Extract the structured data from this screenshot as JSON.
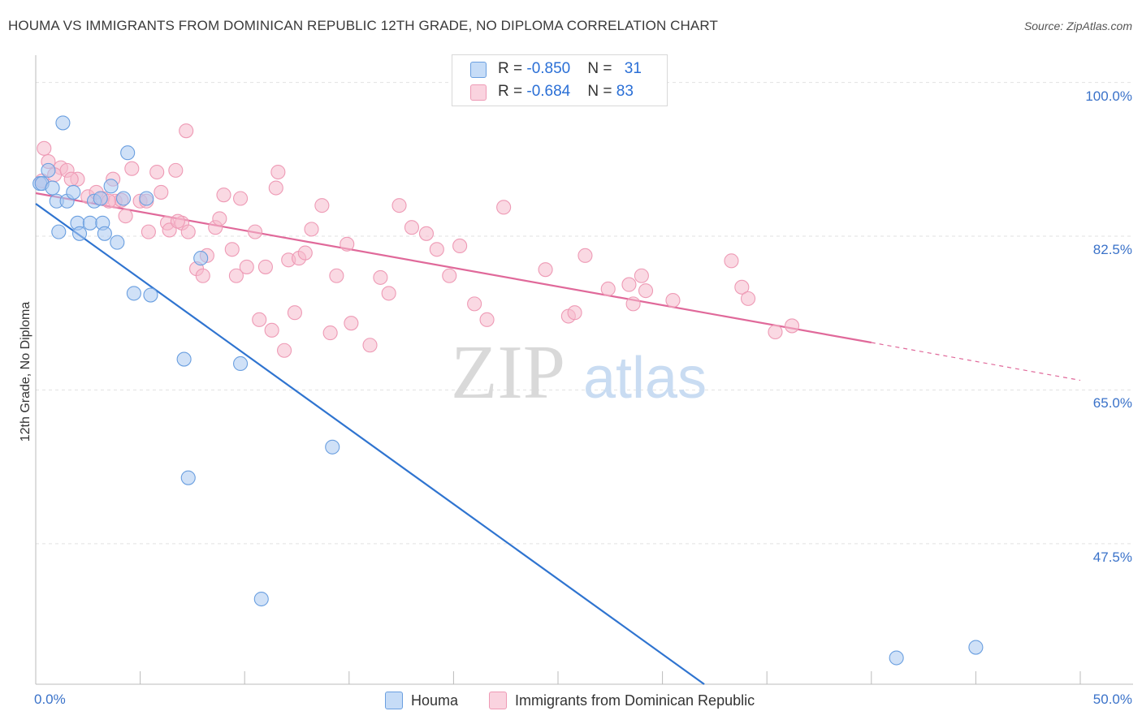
{
  "title": "HOUMA VS IMMIGRANTS FROM DOMINICAN REPUBLIC 12TH GRADE, NO DIPLOMA CORRELATION CHART",
  "source": "Source: ZipAtlas.com",
  "watermark": {
    "zip": "ZIP",
    "atlas": "atlas"
  },
  "legend": {
    "rows": [
      {
        "r_label": "R = ",
        "r_value": "-0.850",
        "n_label": "N = ",
        "n_value": "31",
        "color": "#a9c8f0"
      },
      {
        "r_label": "R = ",
        "r_value": "-0.684",
        "n_label": "N = ",
        "n_value": "83",
        "color": "#f5b9cc"
      }
    ]
  },
  "bottom_legend": [
    {
      "label": "Houma",
      "color": "#a9c8f0"
    },
    {
      "label": "Immigrants from Dominican Republic",
      "color": "#f5b9cc"
    }
  ],
  "chart_data": {
    "type": "scatter",
    "title": "HOUMA VS IMMIGRANTS FROM DOMINICAN REPUBLIC 12TH GRADE, NO DIPLOMA CORRELATION CHART",
    "xlabel": "",
    "ylabel": "12th Grade, No Diploma",
    "xlim": [
      0,
      50
    ],
    "ylim": [
      31.5,
      102
    ],
    "x_tick_labels": [
      "0.0%",
      "50.0%"
    ],
    "y_ticks": [
      47.5,
      65.0,
      82.5,
      100.0
    ],
    "y_tick_labels": [
      "47.5%",
      "65.0%",
      "82.5%",
      "100.0%"
    ],
    "grid": true,
    "legend_position": "top-center",
    "series": [
      {
        "name": "Houma",
        "color": "#6a9fe0",
        "fill": "#a9c8f0",
        "line_color": "#2f74d0",
        "trend": {
          "x": [
            0,
            32.0
          ],
          "y": [
            86.2,
            31.5
          ]
        },
        "points": [
          {
            "x": 1.3,
            "y": 95.4
          },
          {
            "x": 0.2,
            "y": 88.5
          },
          {
            "x": 0.3,
            "y": 88.5
          },
          {
            "x": 0.6,
            "y": 90.0
          },
          {
            "x": 0.8,
            "y": 88.0
          },
          {
            "x": 1.0,
            "y": 86.5
          },
          {
            "x": 1.5,
            "y": 86.5
          },
          {
            "x": 1.8,
            "y": 87.5
          },
          {
            "x": 2.0,
            "y": 84.0
          },
          {
            "x": 1.1,
            "y": 83.0
          },
          {
            "x": 2.1,
            "y": 82.8
          },
          {
            "x": 2.6,
            "y": 84.0
          },
          {
            "x": 2.8,
            "y": 86.5
          },
          {
            "x": 3.1,
            "y": 86.8
          },
          {
            "x": 3.2,
            "y": 84.0
          },
          {
            "x": 3.3,
            "y": 82.8
          },
          {
            "x": 3.6,
            "y": 88.2
          },
          {
            "x": 3.9,
            "y": 81.8
          },
          {
            "x": 4.2,
            "y": 86.8
          },
          {
            "x": 4.4,
            "y": 92.0
          },
          {
            "x": 4.7,
            "y": 76.0
          },
          {
            "x": 5.3,
            "y": 86.8
          },
          {
            "x": 5.5,
            "y": 75.8
          },
          {
            "x": 7.9,
            "y": 80.0
          },
          {
            "x": 7.1,
            "y": 68.5
          },
          {
            "x": 9.8,
            "y": 68.0
          },
          {
            "x": 7.3,
            "y": 55.0
          },
          {
            "x": 14.2,
            "y": 58.5
          },
          {
            "x": 10.8,
            "y": 41.2
          },
          {
            "x": 41.2,
            "y": 34.5
          },
          {
            "x": 45.0,
            "y": 35.7
          }
        ]
      },
      {
        "name": "Immigrants from Dominican Republic",
        "color": "#ee9ab5",
        "fill": "#f5b9cc",
        "line_color": "#e0699a",
        "trend": {
          "x": [
            0,
            40.0,
            50.0
          ],
          "y": [
            87.4,
            70.4,
            66.1
          ]
        },
        "points": [
          {
            "x": 0.4,
            "y": 92.5
          },
          {
            "x": 0.6,
            "y": 91.0
          },
          {
            "x": 1.2,
            "y": 90.3
          },
          {
            "x": 0.9,
            "y": 89.5
          },
          {
            "x": 1.5,
            "y": 90.0
          },
          {
            "x": 2.0,
            "y": 89.0
          },
          {
            "x": 0.3,
            "y": 88.8
          },
          {
            "x": 2.5,
            "y": 87.0
          },
          {
            "x": 2.9,
            "y": 87.5
          },
          {
            "x": 3.2,
            "y": 86.8
          },
          {
            "x": 3.7,
            "y": 89.0
          },
          {
            "x": 3.8,
            "y": 86.5
          },
          {
            "x": 4.1,
            "y": 86.6
          },
          {
            "x": 4.3,
            "y": 84.8
          },
          {
            "x": 4.6,
            "y": 90.2
          },
          {
            "x": 5.0,
            "y": 86.5
          },
          {
            "x": 5.3,
            "y": 86.5
          },
          {
            "x": 5.4,
            "y": 83.0
          },
          {
            "x": 5.8,
            "y": 89.8
          },
          {
            "x": 6.0,
            "y": 87.5
          },
          {
            "x": 6.3,
            "y": 84.0
          },
          {
            "x": 6.4,
            "y": 83.2
          },
          {
            "x": 6.7,
            "y": 90.0
          },
          {
            "x": 7.0,
            "y": 84.0
          },
          {
            "x": 7.3,
            "y": 83.0
          },
          {
            "x": 7.2,
            "y": 94.5
          },
          {
            "x": 7.7,
            "y": 78.8
          },
          {
            "x": 8.0,
            "y": 78.0
          },
          {
            "x": 8.2,
            "y": 80.3
          },
          {
            "x": 8.6,
            "y": 83.5
          },
          {
            "x": 8.8,
            "y": 84.5
          },
          {
            "x": 9.0,
            "y": 87.2
          },
          {
            "x": 9.4,
            "y": 81.0
          },
          {
            "x": 9.6,
            "y": 78.0
          },
          {
            "x": 9.8,
            "y": 86.8
          },
          {
            "x": 10.1,
            "y": 79.0
          },
          {
            "x": 10.5,
            "y": 83.0
          },
          {
            "x": 10.7,
            "y": 73.0
          },
          {
            "x": 11.0,
            "y": 79.0
          },
          {
            "x": 11.3,
            "y": 71.8
          },
          {
            "x": 11.5,
            "y": 88.0
          },
          {
            "x": 11.6,
            "y": 89.8
          },
          {
            "x": 11.9,
            "y": 69.5
          },
          {
            "x": 12.1,
            "y": 79.8
          },
          {
            "x": 12.4,
            "y": 73.8
          },
          {
            "x": 12.6,
            "y": 80.0
          },
          {
            "x": 12.9,
            "y": 80.6
          },
          {
            "x": 13.2,
            "y": 83.3
          },
          {
            "x": 13.7,
            "y": 86.0
          },
          {
            "x": 14.1,
            "y": 71.5
          },
          {
            "x": 14.4,
            "y": 78.0
          },
          {
            "x": 14.9,
            "y": 81.6
          },
          {
            "x": 15.1,
            "y": 72.6
          },
          {
            "x": 16.0,
            "y": 70.1
          },
          {
            "x": 16.5,
            "y": 77.8
          },
          {
            "x": 16.9,
            "y": 76.0
          },
          {
            "x": 17.4,
            "y": 86.0
          },
          {
            "x": 18.0,
            "y": 83.5
          },
          {
            "x": 18.7,
            "y": 82.8
          },
          {
            "x": 19.2,
            "y": 81.0
          },
          {
            "x": 19.8,
            "y": 78.0
          },
          {
            "x": 20.3,
            "y": 81.4
          },
          {
            "x": 21.0,
            "y": 74.8
          },
          {
            "x": 21.6,
            "y": 73.0
          },
          {
            "x": 22.4,
            "y": 85.8
          },
          {
            "x": 24.4,
            "y": 78.7
          },
          {
            "x": 25.5,
            "y": 73.4
          },
          {
            "x": 25.8,
            "y": 73.8
          },
          {
            "x": 26.3,
            "y": 80.3
          },
          {
            "x": 27.4,
            "y": 76.5
          },
          {
            "x": 28.4,
            "y": 77.0
          },
          {
            "x": 28.6,
            "y": 74.8
          },
          {
            "x": 29.0,
            "y": 78.0
          },
          {
            "x": 29.2,
            "y": 76.3
          },
          {
            "x": 30.5,
            "y": 75.2
          },
          {
            "x": 33.3,
            "y": 79.7
          },
          {
            "x": 33.8,
            "y": 76.7
          },
          {
            "x": 34.1,
            "y": 75.4
          },
          {
            "x": 35.4,
            "y": 71.6
          },
          {
            "x": 36.2,
            "y": 72.3
          },
          {
            "x": 3.5,
            "y": 86.5
          },
          {
            "x": 1.7,
            "y": 89.0
          },
          {
            "x": 6.8,
            "y": 84.2
          }
        ]
      }
    ]
  }
}
